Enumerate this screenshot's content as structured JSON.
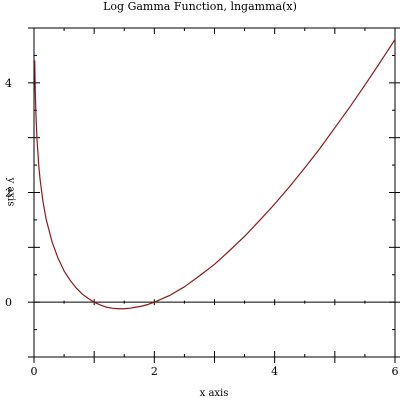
{
  "chart_data": {
    "type": "line",
    "title": "Log Gamma Function, lngamma(x)",
    "xlabel": "x axis",
    "ylabel": "y axis",
    "xlim": [
      0,
      6
    ],
    "ylim": [
      -1,
      5
    ],
    "x_ticks": [
      0,
      2,
      4,
      6
    ],
    "x_tick_labels": [
      "0",
      "2",
      "4",
      "6"
    ],
    "y_ticks": [
      0,
      2,
      4
    ],
    "y_tick_labels": [
      "0",
      "2",
      "4"
    ],
    "grid": false,
    "legend": "none",
    "series": [
      {
        "color": "#8b1a1a",
        "x": [
          0.012,
          0.02,
          0.03,
          0.05,
          0.08,
          0.1,
          0.15,
          0.2,
          0.3,
          0.4,
          0.5,
          0.6,
          0.7,
          0.8,
          0.9,
          1.0,
          1.1,
          1.2,
          1.3,
          1.4,
          1.4616,
          1.5,
          1.6,
          1.7,
          1.8,
          1.9,
          2.0,
          2.25,
          2.5,
          2.75,
          3.0,
          3.25,
          3.5,
          3.75,
          4.0,
          4.25,
          4.5,
          4.75,
          5.0,
          5.25,
          5.5,
          5.75,
          6.0
        ],
        "y": [
          4.41,
          3.9,
          3.49,
          2.97,
          2.48,
          2.25,
          1.83,
          1.52,
          1.1,
          0.8,
          0.57,
          0.4,
          0.26,
          0.15,
          0.07,
          0.0,
          -0.05,
          -0.09,
          -0.11,
          -0.12,
          -0.12,
          -0.12,
          -0.11,
          -0.09,
          -0.07,
          -0.04,
          0.0,
          0.12,
          0.28,
          0.48,
          0.69,
          0.94,
          1.2,
          1.49,
          1.79,
          2.11,
          2.45,
          2.8,
          3.18,
          3.56,
          3.96,
          4.37,
          4.79
        ]
      }
    ]
  }
}
